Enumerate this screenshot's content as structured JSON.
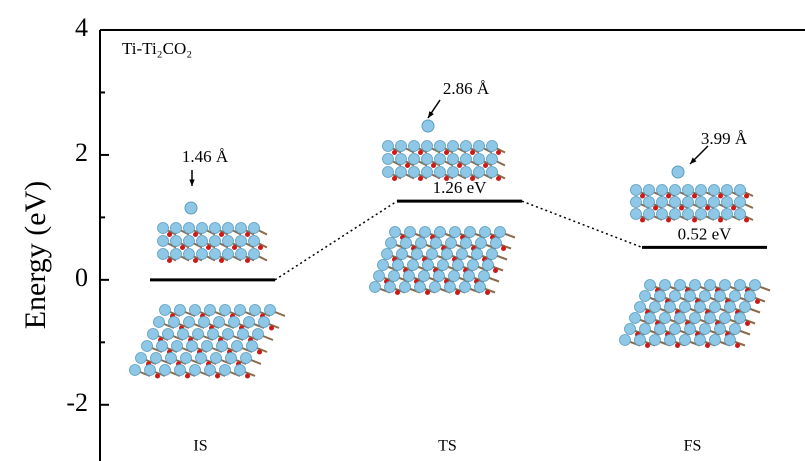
{
  "chart_data": {
    "type": "energy-profile",
    "label": "Ti-Ti₂CO₂",
    "y_label": "Energy (eV)",
    "categories": [
      "IS",
      "TS",
      "FS"
    ],
    "values": [
      0,
      1.26,
      0.52
    ],
    "value_labels": [
      null,
      "1.26 eV",
      "0.52 eV"
    ],
    "annotations": [
      "1.46 Å",
      "2.86 Å",
      "3.99 Å"
    ],
    "color": "#000000",
    "ylim": [
      -2.9,
      4
    ],
    "yticks": [
      -2,
      0,
      2,
      4
    ],
    "yminorticks": [
      -1,
      1,
      3
    ]
  }
}
